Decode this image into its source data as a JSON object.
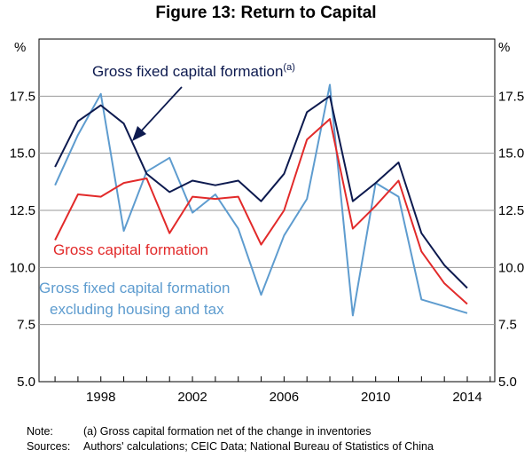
{
  "title": "Figure 13: Return to Capital",
  "notes": [
    {
      "key": "Note:",
      "text": "(a) Gross capital formation net of the change in inventories"
    },
    {
      "key": "Sources:",
      "text": "Authors' calculations; CEIC Data; National Bureau of Statistics of China"
    }
  ],
  "chart_data": {
    "type": "line",
    "title": "Figure 13: Return to Capital",
    "y_unit_left": "%",
    "y_unit_right": "%",
    "ylim": [
      5.0,
      20.0
    ],
    "yticks": [
      "5.0",
      "7.5",
      "10.0",
      "12.5",
      "15.0",
      "17.5"
    ],
    "xlim": [
      1995.3,
      2015.2
    ],
    "xticks": [
      "1998",
      "2002",
      "2006",
      "2010",
      "2014"
    ],
    "grid": true,
    "series": [
      {
        "name": "Gross fixed capital formation",
        "name_sup": "(a)",
        "color": "#0d1a4f",
        "x": [
          1996,
          1997,
          1998,
          1999,
          2000,
          2001,
          2002,
          2003,
          2004,
          2005,
          2006,
          2007,
          2008,
          2009,
          2010,
          2011,
          2012,
          2013,
          2014
        ],
        "y": [
          14.4,
          16.4,
          17.1,
          16.3,
          14.1,
          13.3,
          13.8,
          13.6,
          13.8,
          12.9,
          14.1,
          16.8,
          17.5,
          12.9,
          13.7,
          14.6,
          11.5,
          10.1,
          9.1
        ]
      },
      {
        "name": "Gross capital formation",
        "color": "#e22a2a",
        "x": [
          1996,
          1997,
          1998,
          1999,
          2000,
          2001,
          2002,
          2003,
          2004,
          2005,
          2006,
          2007,
          2008,
          2009,
          2010,
          2011,
          2012,
          2013,
          2014
        ],
        "y": [
          11.2,
          13.2,
          13.1,
          13.7,
          13.9,
          11.5,
          13.1,
          13.0,
          13.1,
          11.0,
          12.5,
          15.6,
          16.5,
          11.7,
          12.7,
          13.8,
          10.7,
          9.3,
          8.4
        ]
      },
      {
        "name": "Gross fixed capital formation excluding housing and tax",
        "name_lines": [
          "Gross fixed capital formation",
          "excluding housing and tax"
        ],
        "color": "#5e9ccf",
        "x": [
          1996,
          1997,
          1998,
          1999,
          2000,
          2001,
          2002,
          2003,
          2004,
          2005,
          2006,
          2007,
          2008,
          2009,
          2010,
          2011,
          2012,
          2013,
          2014
        ],
        "y": [
          13.6,
          15.8,
          17.6,
          11.6,
          14.2,
          14.8,
          12.4,
          13.2,
          11.7,
          8.8,
          11.4,
          13.0,
          18.0,
          7.9,
          13.7,
          13.1,
          8.6,
          8.3,
          8.0
        ]
      }
    ]
  }
}
